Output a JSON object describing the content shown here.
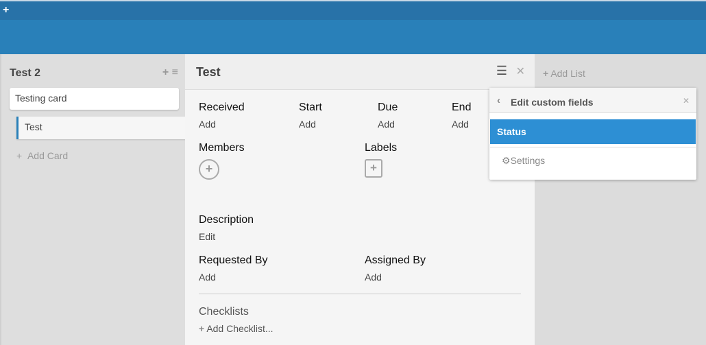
{
  "topbar": {
    "add_icon": "plus-icon"
  },
  "list": {
    "title": "Test 2",
    "cards": [
      "Testing card",
      "Test"
    ],
    "add_card": "Add Card"
  },
  "details": {
    "title": "Test",
    "dates": [
      {
        "label": "Received",
        "value": "Add"
      },
      {
        "label": "Start",
        "value": "Add"
      },
      {
        "label": "Due",
        "value": "Add"
      },
      {
        "label": "End",
        "value": "Add"
      }
    ],
    "members": "Members",
    "labels": "Labels",
    "description": "Description",
    "description_action": "Edit",
    "requested_by": "Requested By",
    "requested_by_value": "Add",
    "assigned_by": "Assigned By",
    "assigned_by_value": "Add",
    "checklists": "Checklists",
    "add_checklist": "Add Checklist..."
  },
  "add_list": "Add List",
  "popup": {
    "title": "Edit custom fields",
    "items": [
      "Status"
    ],
    "settings": "Settings"
  },
  "colors": {
    "header": "#2980b9",
    "topbar": "#2872a8",
    "selected": "#2d8fd4"
  }
}
